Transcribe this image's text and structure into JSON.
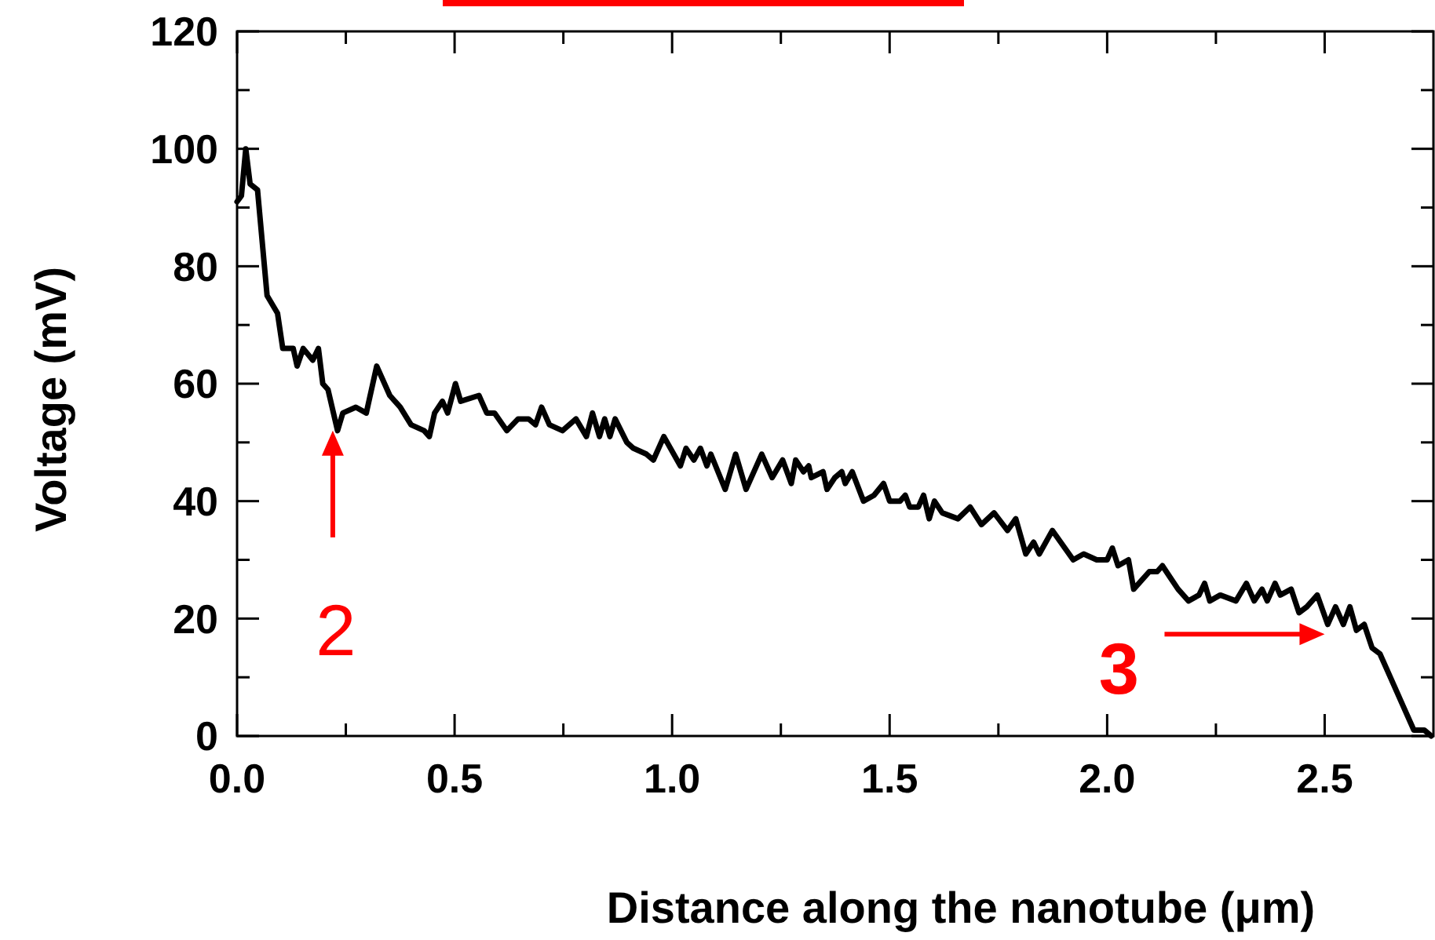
{
  "chart_data": {
    "type": "line",
    "xlabel": "Distance along the nanotube (μm)",
    "ylabel": "Voltage (mV)",
    "xlim": [
      0,
      2.75
    ],
    "ylim": [
      0,
      120
    ],
    "xticks": [
      {
        "value": 0,
        "label": "0.0"
      },
      {
        "value": 0.25,
        "label": null
      },
      {
        "value": 0.5,
        "label": "0.5"
      },
      {
        "value": 0.75,
        "label": null
      },
      {
        "value": 1,
        "label": "1.0"
      },
      {
        "value": 1.25,
        "label": null
      },
      {
        "value": 1.5,
        "label": "1.5"
      },
      {
        "value": 1.75,
        "label": null
      },
      {
        "value": 2,
        "label": "2.0"
      },
      {
        "value": 2.25,
        "label": null
      },
      {
        "value": 2.5,
        "label": "2.5"
      }
    ],
    "yticks": [
      0,
      {
        "value": 10,
        "label": null
      },
      20,
      {
        "value": 30,
        "label": null
      },
      40,
      {
        "value": 50,
        "label": null
      },
      60,
      {
        "value": 70,
        "label": null
      },
      80,
      {
        "value": 90,
        "label": null
      },
      100,
      {
        "value": 110,
        "label": null
      },
      120
    ],
    "grid": false,
    "marker": "none",
    "line_style": "solid",
    "annotations": [
      {
        "text": "2",
        "x": 0.22,
        "y": 52
      },
      {
        "text": "3",
        "x": 2.5,
        "y": 20
      }
    ],
    "series": [
      {
        "color": "#000000",
        "x": [
          0,
          0.01,
          0.02,
          0.03,
          0.047,
          0.069,
          0.093,
          0.105,
          0.129,
          0.138,
          0.152,
          0.174,
          0.187,
          0.197,
          0.209,
          0.231,
          0.243,
          0.273,
          0.297,
          0.321,
          0.351,
          0.375,
          0.4,
          0.43,
          0.442,
          0.454,
          0.472,
          0.484,
          0.502,
          0.514,
          0.556,
          0.574,
          0.592,
          0.62,
          0.646,
          0.67,
          0.686,
          0.7,
          0.718,
          0.748,
          0.779,
          0.803,
          0.817,
          0.833,
          0.845,
          0.857,
          0.869,
          0.896,
          0.911,
          0.941,
          0.957,
          0.981,
          1.019,
          1.032,
          1.05,
          1.065,
          1.08,
          1.089,
          1.122,
          1.146,
          1.17,
          1.206,
          1.23,
          1.254,
          1.274,
          1.284,
          1.302,
          1.314,
          1.32,
          1.347,
          1.356,
          1.374,
          1.39,
          1.398,
          1.414,
          1.44,
          1.464,
          1.486,
          1.5,
          1.524,
          1.536,
          1.546,
          1.566,
          1.578,
          1.591,
          1.603,
          1.621,
          1.657,
          1.685,
          1.711,
          1.74,
          1.771,
          1.79,
          1.813,
          1.831,
          1.844,
          1.874,
          1.922,
          1.946,
          1.976,
          2.0,
          2.012,
          2.025,
          2.049,
          2.061,
          2.097,
          2.115,
          2.127,
          2.145,
          2.163,
          2.187,
          2.211,
          2.224,
          2.236,
          2.26,
          2.296,
          2.32,
          2.338,
          2.356,
          2.368,
          2.386,
          2.398,
          2.423,
          2.441,
          2.459,
          2.483,
          2.507,
          2.525,
          2.543,
          2.558,
          2.573,
          2.591,
          2.609,
          2.627,
          2.651,
          2.681,
          2.705,
          2.729,
          2.745
        ],
        "values": [
          91,
          92,
          100,
          94,
          93,
          75,
          72,
          66,
          66,
          63,
          66,
          64,
          66,
          60,
          59,
          52,
          55,
          56,
          55,
          63,
          58,
          56,
          53,
          52,
          51,
          55,
          57,
          55,
          60,
          57,
          58,
          55,
          55,
          52,
          54,
          54,
          53,
          56,
          53,
          52,
          54,
          51,
          55,
          51,
          54,
          51,
          54,
          50,
          49,
          48,
          47,
          51,
          46,
          49,
          47,
          49,
          46,
          48,
          42,
          48,
          42,
          48,
          44,
          47,
          43,
          47,
          45,
          46,
          44,
          45,
          42,
          44,
          45,
          43,
          45,
          40,
          41,
          43,
          40,
          40,
          41,
          39,
          39,
          41,
          37,
          40,
          38,
          37,
          39,
          36,
          38,
          35,
          37,
          31,
          33,
          31,
          35,
          30,
          31,
          30,
          30,
          32,
          29,
          30,
          25,
          28,
          28,
          29,
          27,
          25,
          23,
          24,
          26,
          23,
          24,
          23,
          26,
          23,
          25,
          23,
          26,
          24,
          25,
          21,
          22,
          24,
          19,
          22,
          19,
          22,
          18,
          19,
          15,
          14,
          10,
          5,
          1,
          1,
          0
        ]
      }
    ]
  }
}
